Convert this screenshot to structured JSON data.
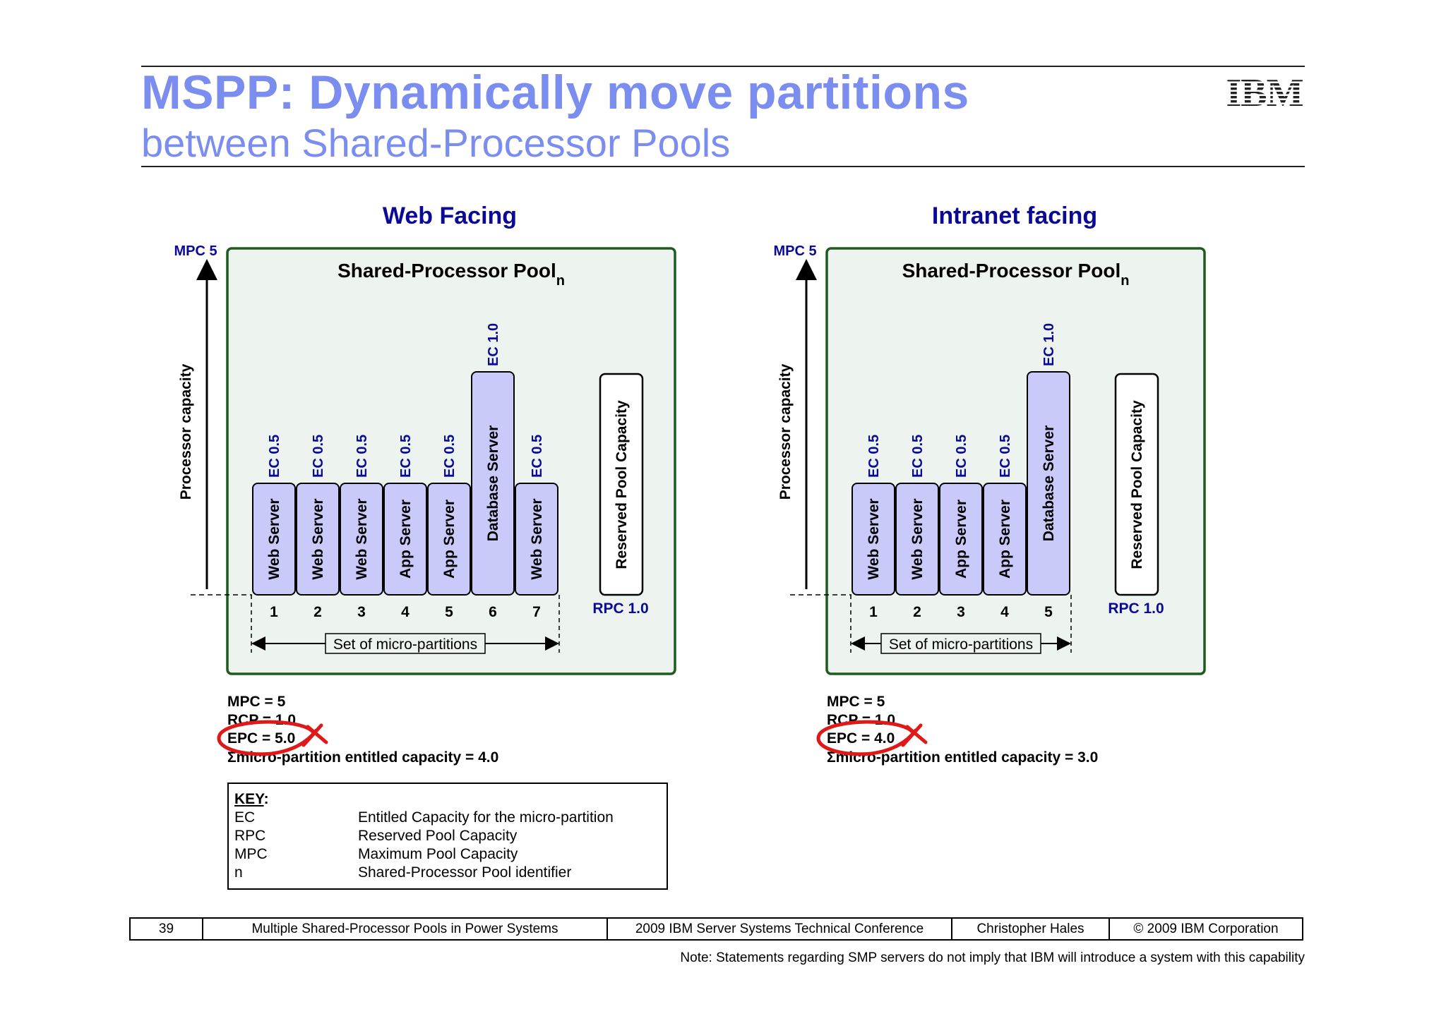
{
  "header": {
    "title": "MSPP: Dynamically move partitions",
    "subtitle": "between Shared-Processor Pools",
    "logo": "IBM"
  },
  "pools": [
    {
      "heading": "Web Facing",
      "mpc_axis_label": "MPC 5",
      "axis_label": "Processor capacity",
      "pool_title": "Shared-Processor Pool",
      "pool_subscript": "n",
      "partitions": [
        {
          "number": "1",
          "name": "Web Server",
          "ec_label": "EC 0.5",
          "ec": 0.5
        },
        {
          "number": "2",
          "name": "Web Server",
          "ec_label": "EC 0.5",
          "ec": 0.5
        },
        {
          "number": "3",
          "name": "Web Server",
          "ec_label": "EC 0.5",
          "ec": 0.5
        },
        {
          "number": "4",
          "name": "App Server",
          "ec_label": "EC 0.5",
          "ec": 0.5
        },
        {
          "number": "5",
          "name": "App Server",
          "ec_label": "EC 0.5",
          "ec": 0.5
        },
        {
          "number": "6",
          "name": "Database Server",
          "ec_label": "EC 1.0",
          "ec": 1.0
        },
        {
          "number": "7",
          "name": "Web Server",
          "ec_label": "EC 0.5",
          "ec": 0.5
        }
      ],
      "reserved_label": "Reserved Pool Capacity",
      "rpc_label": "RPC 1.0",
      "set_label": "Set of micro-partitions",
      "stats": [
        "MPC = 5",
        "RCP = 1.0",
        "EPC = 5.0",
        "Σmicro-partition entitled capacity = 4.0"
      ]
    },
    {
      "heading": "Intranet facing",
      "mpc_axis_label": "MPC 5",
      "axis_label": "Processor capacity",
      "pool_title": "Shared-Processor Pool",
      "pool_subscript": "n",
      "partitions": [
        {
          "number": "1",
          "name": "Web Server",
          "ec_label": "EC 0.5",
          "ec": 0.5
        },
        {
          "number": "2",
          "name": "Web Server",
          "ec_label": "EC 0.5",
          "ec": 0.5
        },
        {
          "number": "3",
          "name": "App Server",
          "ec_label": "EC 0.5",
          "ec": 0.5
        },
        {
          "number": "4",
          "name": "App Server",
          "ec_label": "EC 0.5",
          "ec": 0.5
        },
        {
          "number": "5",
          "name": "Database Server",
          "ec_label": "EC 1.0",
          "ec": 1.0
        }
      ],
      "reserved_label": "Reserved Pool Capacity",
      "rpc_label": "RPC 1.0",
      "set_label": "Set of micro-partitions",
      "stats": [
        "MPC = 5",
        "RCP = 1.0",
        "EPC = 4.0",
        "Σmicro-partition entitled capacity = 3.0"
      ]
    }
  ],
  "key": {
    "heading": "KEY",
    "rows": [
      {
        "term": "EC",
        "definition": "Entitled Capacity for the micro-partition"
      },
      {
        "term": "RPC",
        "definition": "Reserved Pool Capacity"
      },
      {
        "term": "MPC",
        "definition": "Maximum Pool Capacity"
      },
      {
        "term": "n",
        "definition": "Shared-Processor Pool identifier"
      }
    ]
  },
  "footer": {
    "page": "39",
    "topic": "Multiple Shared-Processor Pools in Power Systems",
    "event": "2009 IBM Server Systems Technical Conference",
    "author": "Christopher Hales",
    "copyright": "© 2009 IBM Corporation"
  },
  "note": "Note: Statements regarding SMP servers do not imply that IBM will introduce a system with this capability",
  "colors": {
    "title": "#7b8ef0",
    "pool_bg": "#edf3ee",
    "pool_border": "#1f5a1f",
    "partition_fill": "#c9c9fa",
    "label_blue": "#0a0a96",
    "circle_red": "#e01818"
  }
}
